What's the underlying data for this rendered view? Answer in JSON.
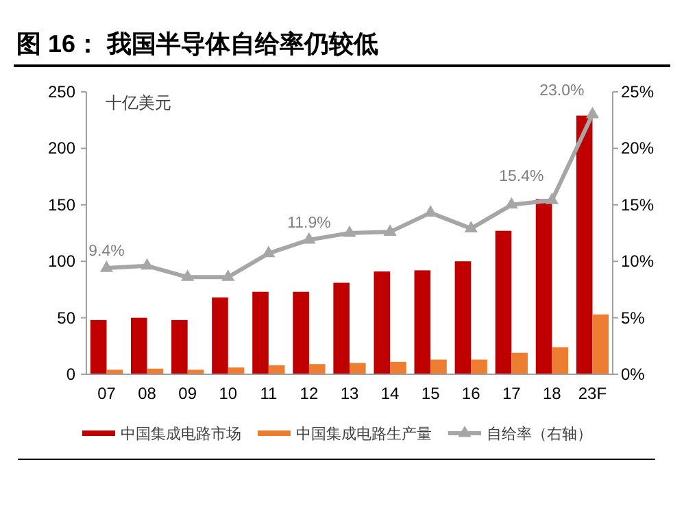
{
  "chart_data": {
    "type": "bar",
    "title": "图 16：  我国半导体自给率仍较低",
    "ylabel": "十亿美元",
    "categories": [
      "07",
      "08",
      "09",
      "10",
      "11",
      "12",
      "13",
      "14",
      "15",
      "16",
      "17",
      "18",
      "23F"
    ],
    "series": [
      {
        "name": "中国集成电路市场",
        "color": "#c00000",
        "values": [
          48,
          50,
          48,
          68,
          73,
          73,
          81,
          91,
          92,
          100,
          127,
          155,
          229
        ]
      },
      {
        "name": "中国集成电路生产量",
        "color": "#ed7d31",
        "values": [
          4,
          5,
          4,
          6,
          8,
          9,
          10,
          11,
          13,
          13,
          19,
          24,
          53
        ]
      },
      {
        "name": "自给率（右轴）",
        "type": "line",
        "axis": "y2",
        "color": "#a6a6a6",
        "marker": "triangle",
        "values": [
          9.4,
          9.6,
          8.6,
          8.6,
          10.7,
          11.9,
          12.5,
          12.6,
          14.3,
          12.9,
          15.0,
          15.4,
          23.0
        ],
        "value_labels": [
          "9.4%",
          null,
          null,
          null,
          null,
          "11.9%",
          null,
          null,
          null,
          null,
          null,
          "15.4%",
          "23.0%"
        ]
      }
    ],
    "ylim": [
      0,
      250
    ],
    "yticks": [
      0,
      50,
      100,
      150,
      200,
      250
    ],
    "y2lim": [
      0,
      25
    ],
    "y2ticks": [
      {
        "value": 0,
        "label": "0%"
      },
      {
        "value": 5,
        "label": "5%"
      },
      {
        "value": 10,
        "label": "10%"
      },
      {
        "value": 15,
        "label": "15%"
      },
      {
        "value": 20,
        "label": "20%"
      },
      {
        "value": 25,
        "label": "25%"
      }
    ],
    "legend": "bottom",
    "grid": false
  }
}
